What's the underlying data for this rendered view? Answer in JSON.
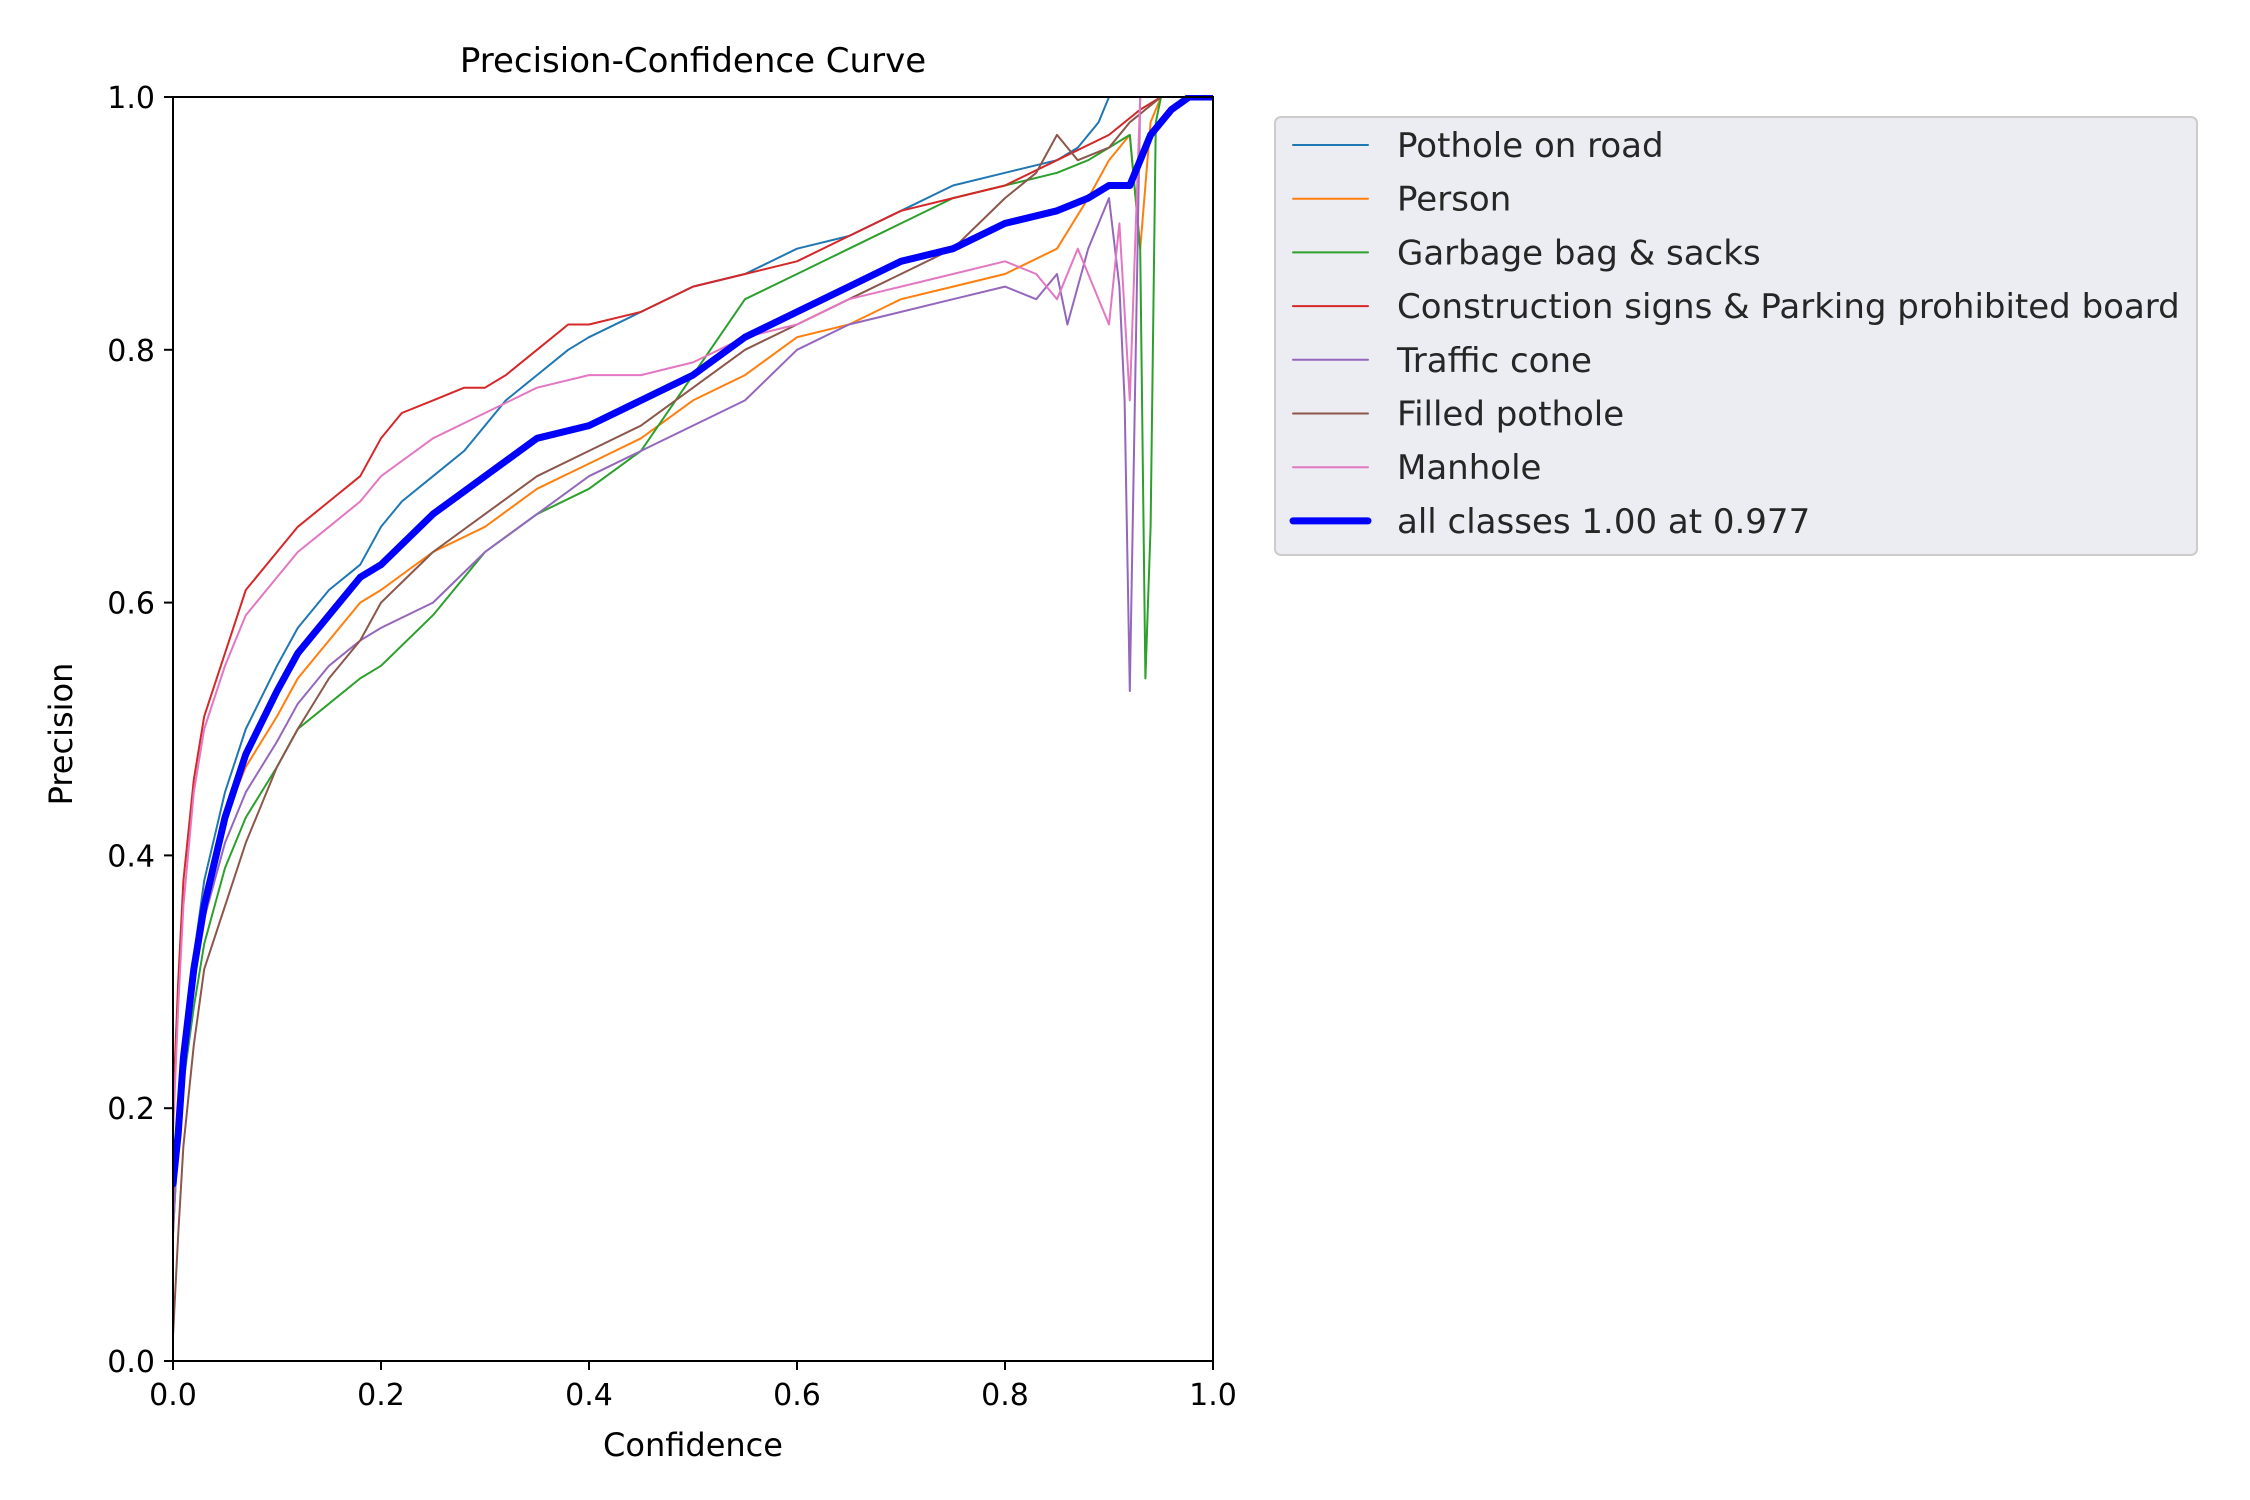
{
  "chart_data": {
    "type": "line",
    "title": "Precision-Confidence Curve",
    "xlabel": "Confidence",
    "ylabel": "Precision",
    "xlim": [
      0,
      1
    ],
    "ylim": [
      0,
      1
    ],
    "xticks": [
      "0.0",
      "0.2",
      "0.4",
      "0.6",
      "0.8",
      "1.0"
    ],
    "yticks": [
      "0.0",
      "0.2",
      "0.4",
      "0.6",
      "0.8",
      "1.0"
    ],
    "grid": false,
    "legend_position": "outside-right-top",
    "series": [
      {
        "name": "Pothole on road",
        "color": "#1f77b4",
        "x": [
          0.0,
          0.005,
          0.01,
          0.02,
          0.03,
          0.05,
          0.07,
          0.1,
          0.12,
          0.15,
          0.18,
          0.2,
          0.22,
          0.25,
          0.28,
          0.3,
          0.32,
          0.35,
          0.38,
          0.4,
          0.45,
          0.5,
          0.55,
          0.6,
          0.65,
          0.7,
          0.75,
          0.8,
          0.85,
          0.87,
          0.89,
          0.9
        ],
        "y": [
          0.15,
          0.2,
          0.25,
          0.32,
          0.38,
          0.45,
          0.5,
          0.55,
          0.58,
          0.61,
          0.63,
          0.66,
          0.68,
          0.7,
          0.72,
          0.74,
          0.76,
          0.78,
          0.8,
          0.81,
          0.83,
          0.85,
          0.86,
          0.88,
          0.89,
          0.91,
          0.93,
          0.94,
          0.95,
          0.96,
          0.98,
          1.0
        ]
      },
      {
        "name": "Person",
        "color": "#ff7f0e",
        "x": [
          0.0,
          0.005,
          0.01,
          0.02,
          0.03,
          0.05,
          0.07,
          0.1,
          0.12,
          0.15,
          0.18,
          0.2,
          0.25,
          0.3,
          0.35,
          0.4,
          0.45,
          0.5,
          0.55,
          0.6,
          0.65,
          0.7,
          0.75,
          0.8,
          0.85,
          0.88,
          0.9,
          0.92,
          0.93,
          0.94,
          0.95
        ],
        "y": [
          0.12,
          0.2,
          0.25,
          0.32,
          0.37,
          0.43,
          0.47,
          0.51,
          0.54,
          0.57,
          0.6,
          0.61,
          0.64,
          0.66,
          0.69,
          0.71,
          0.73,
          0.76,
          0.78,
          0.81,
          0.82,
          0.84,
          0.85,
          0.86,
          0.88,
          0.92,
          0.95,
          0.97,
          0.88,
          0.98,
          1.0
        ]
      },
      {
        "name": "Garbage bag & sacks",
        "color": "#2ca02c",
        "x": [
          0.0,
          0.005,
          0.01,
          0.02,
          0.03,
          0.05,
          0.07,
          0.1,
          0.12,
          0.15,
          0.18,
          0.2,
          0.25,
          0.3,
          0.35,
          0.4,
          0.45,
          0.5,
          0.55,
          0.6,
          0.65,
          0.7,
          0.75,
          0.8,
          0.85,
          0.88,
          0.9,
          0.92,
          0.93,
          0.935,
          0.94,
          0.945,
          0.95
        ],
        "y": [
          0.1,
          0.18,
          0.22,
          0.28,
          0.33,
          0.39,
          0.43,
          0.47,
          0.5,
          0.52,
          0.54,
          0.55,
          0.59,
          0.64,
          0.67,
          0.69,
          0.72,
          0.78,
          0.84,
          0.86,
          0.88,
          0.9,
          0.92,
          0.93,
          0.94,
          0.95,
          0.96,
          0.97,
          0.88,
          0.54,
          0.66,
          0.98,
          1.0
        ]
      },
      {
        "name": "Construction signs & Parking prohibited board",
        "color": "#d62728",
        "x": [
          0.0,
          0.005,
          0.01,
          0.02,
          0.03,
          0.05,
          0.07,
          0.1,
          0.12,
          0.15,
          0.18,
          0.2,
          0.22,
          0.25,
          0.28,
          0.3,
          0.32,
          0.35,
          0.38,
          0.4,
          0.45,
          0.5,
          0.55,
          0.6,
          0.65,
          0.7,
          0.75,
          0.8,
          0.85,
          0.9,
          0.93,
          0.95
        ],
        "y": [
          0.2,
          0.3,
          0.38,
          0.46,
          0.51,
          0.56,
          0.61,
          0.64,
          0.66,
          0.68,
          0.7,
          0.73,
          0.75,
          0.76,
          0.77,
          0.77,
          0.78,
          0.8,
          0.82,
          0.82,
          0.83,
          0.85,
          0.86,
          0.87,
          0.89,
          0.91,
          0.92,
          0.93,
          0.95,
          0.97,
          0.99,
          1.0
        ]
      },
      {
        "name": "Traffic cone",
        "color": "#9467bd",
        "x": [
          0.0,
          0.005,
          0.01,
          0.02,
          0.03,
          0.05,
          0.07,
          0.1,
          0.12,
          0.15,
          0.18,
          0.2,
          0.25,
          0.3,
          0.35,
          0.4,
          0.45,
          0.5,
          0.55,
          0.6,
          0.65,
          0.7,
          0.75,
          0.8,
          0.83,
          0.85,
          0.86,
          0.88,
          0.9,
          0.91,
          0.915,
          0.92,
          0.93
        ],
        "y": [
          0.1,
          0.18,
          0.23,
          0.3,
          0.35,
          0.41,
          0.45,
          0.49,
          0.52,
          0.55,
          0.57,
          0.58,
          0.6,
          0.64,
          0.67,
          0.7,
          0.72,
          0.74,
          0.76,
          0.8,
          0.82,
          0.83,
          0.84,
          0.85,
          0.84,
          0.86,
          0.82,
          0.88,
          0.92,
          0.85,
          0.76,
          0.53,
          1.0
        ]
      },
      {
        "name": "Filled pothole",
        "color": "#8c564b",
        "x": [
          0.0,
          0.005,
          0.01,
          0.02,
          0.03,
          0.05,
          0.07,
          0.1,
          0.12,
          0.15,
          0.18,
          0.2,
          0.25,
          0.3,
          0.35,
          0.4,
          0.45,
          0.5,
          0.55,
          0.6,
          0.65,
          0.7,
          0.75,
          0.8,
          0.83,
          0.85,
          0.87,
          0.9,
          0.92,
          0.95
        ],
        "y": [
          0.02,
          0.1,
          0.17,
          0.25,
          0.31,
          0.36,
          0.41,
          0.47,
          0.5,
          0.54,
          0.57,
          0.6,
          0.64,
          0.67,
          0.7,
          0.72,
          0.74,
          0.77,
          0.8,
          0.82,
          0.84,
          0.86,
          0.88,
          0.92,
          0.94,
          0.97,
          0.95,
          0.96,
          0.98,
          1.0
        ]
      },
      {
        "name": "Manhole",
        "color": "#e377c2",
        "x": [
          0.0,
          0.005,
          0.01,
          0.02,
          0.03,
          0.05,
          0.07,
          0.1,
          0.12,
          0.15,
          0.18,
          0.2,
          0.25,
          0.3,
          0.35,
          0.4,
          0.45,
          0.5,
          0.55,
          0.6,
          0.65,
          0.7,
          0.75,
          0.8,
          0.83,
          0.85,
          0.87,
          0.88,
          0.9,
          0.91,
          0.92,
          0.93
        ],
        "y": [
          0.18,
          0.28,
          0.36,
          0.45,
          0.5,
          0.55,
          0.59,
          0.62,
          0.64,
          0.66,
          0.68,
          0.7,
          0.73,
          0.75,
          0.77,
          0.78,
          0.78,
          0.79,
          0.81,
          0.82,
          0.84,
          0.85,
          0.86,
          0.87,
          0.86,
          0.84,
          0.88,
          0.86,
          0.82,
          0.9,
          0.76,
          1.0
        ]
      },
      {
        "name": "all classes 1.00 at 0.977",
        "color": "#0000ff",
        "bold": true,
        "x": [
          0.0,
          0.005,
          0.01,
          0.02,
          0.03,
          0.05,
          0.07,
          0.1,
          0.12,
          0.15,
          0.18,
          0.2,
          0.25,
          0.3,
          0.35,
          0.4,
          0.45,
          0.5,
          0.55,
          0.6,
          0.65,
          0.7,
          0.75,
          0.8,
          0.85,
          0.88,
          0.9,
          0.92,
          0.94,
          0.96,
          0.977,
          1.0
        ],
        "y": [
          0.14,
          0.18,
          0.24,
          0.31,
          0.36,
          0.43,
          0.48,
          0.53,
          0.56,
          0.59,
          0.62,
          0.63,
          0.67,
          0.7,
          0.73,
          0.74,
          0.76,
          0.78,
          0.81,
          0.83,
          0.85,
          0.87,
          0.88,
          0.9,
          0.91,
          0.92,
          0.93,
          0.93,
          0.97,
          0.99,
          1.0,
          1.0
        ]
      }
    ]
  }
}
